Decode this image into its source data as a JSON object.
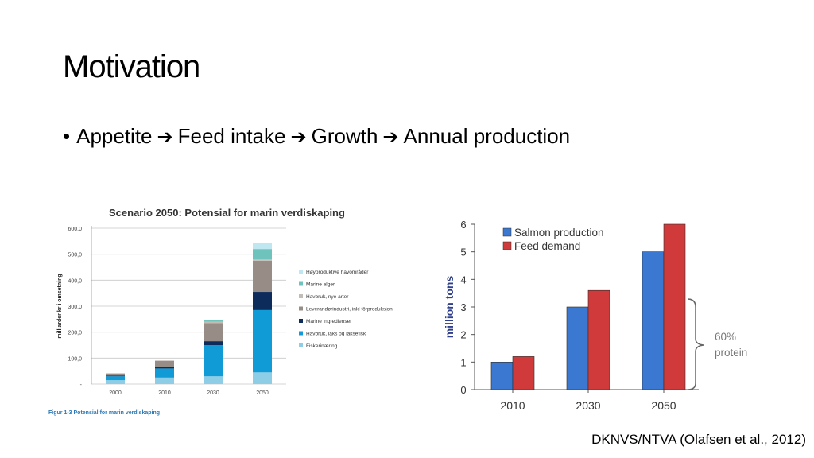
{
  "slide": {
    "title": "Motivation",
    "bullet": {
      "steps": [
        "Appetite",
        "Feed intake",
        "Growth",
        "Annual production"
      ],
      "separator_icon": "right-arrow-icon"
    },
    "citation": "DKNVS/NTVA (Olafsen et al., 2012)"
  },
  "chart_data": [
    {
      "type": "bar",
      "stacked": true,
      "title": "Scenario 2050: Potensial for marin verdiskaping",
      "caption": "Figur 1-3 Potensial for marin verdiskaping",
      "ylabel": "milliarder kr i omsetning",
      "xlabel": "",
      "categories": [
        "2000",
        "2010",
        "2030",
        "2050"
      ],
      "y_ticks": [
        "600,0",
        "500,0",
        "400,0",
        "300,0",
        "200,0",
        "100,0",
        "-"
      ],
      "ylim": [
        0,
        600
      ],
      "legend_position": "right",
      "series": [
        {
          "name": "Fiskerinæring",
          "color": "#8ecde6",
          "values": [
            15,
            25,
            30,
            45
          ]
        },
        {
          "name": "Havbruk, laks og laksefisk",
          "color": "#109ad6",
          "values": [
            15,
            35,
            120,
            240
          ]
        },
        {
          "name": "Marine ingredienser",
          "color": "#0d2c5b",
          "values": [
            3,
            5,
            15,
            70
          ]
        },
        {
          "name": "Leverandørindustri, inkl fôrproduksjon",
          "color": "#978c86",
          "values": [
            8,
            25,
            70,
            120
          ]
        },
        {
          "name": "Havbruk, nye arter",
          "color": "#c2bcb7",
          "values": [
            0,
            0,
            5,
            5
          ]
        },
        {
          "name": "Marine alger",
          "color": "#6fc3bd",
          "values": [
            0,
            0,
            5,
            40
          ]
        },
        {
          "name": "Høyproduktive havområder",
          "color": "#bfe7f2",
          "values": [
            0,
            0,
            0,
            25
          ]
        }
      ]
    },
    {
      "type": "bar",
      "stacked": false,
      "title": "",
      "ylabel": "million tons",
      "xlabel": "",
      "categories": [
        "2010",
        "2030",
        "2050"
      ],
      "y_ticks": [
        "0",
        "1",
        "2",
        "3",
        "4",
        "5",
        "6"
      ],
      "ylim": [
        0,
        6
      ],
      "legend_position": "top-left",
      "series": [
        {
          "name": "Salmon production",
          "color": "#3a78d1",
          "values": [
            1,
            3,
            5
          ]
        },
        {
          "name": "Feed demand",
          "color": "#d13a3a",
          "values": [
            1.2,
            3.6,
            6
          ]
        }
      ],
      "annotation": "60% protein"
    }
  ]
}
